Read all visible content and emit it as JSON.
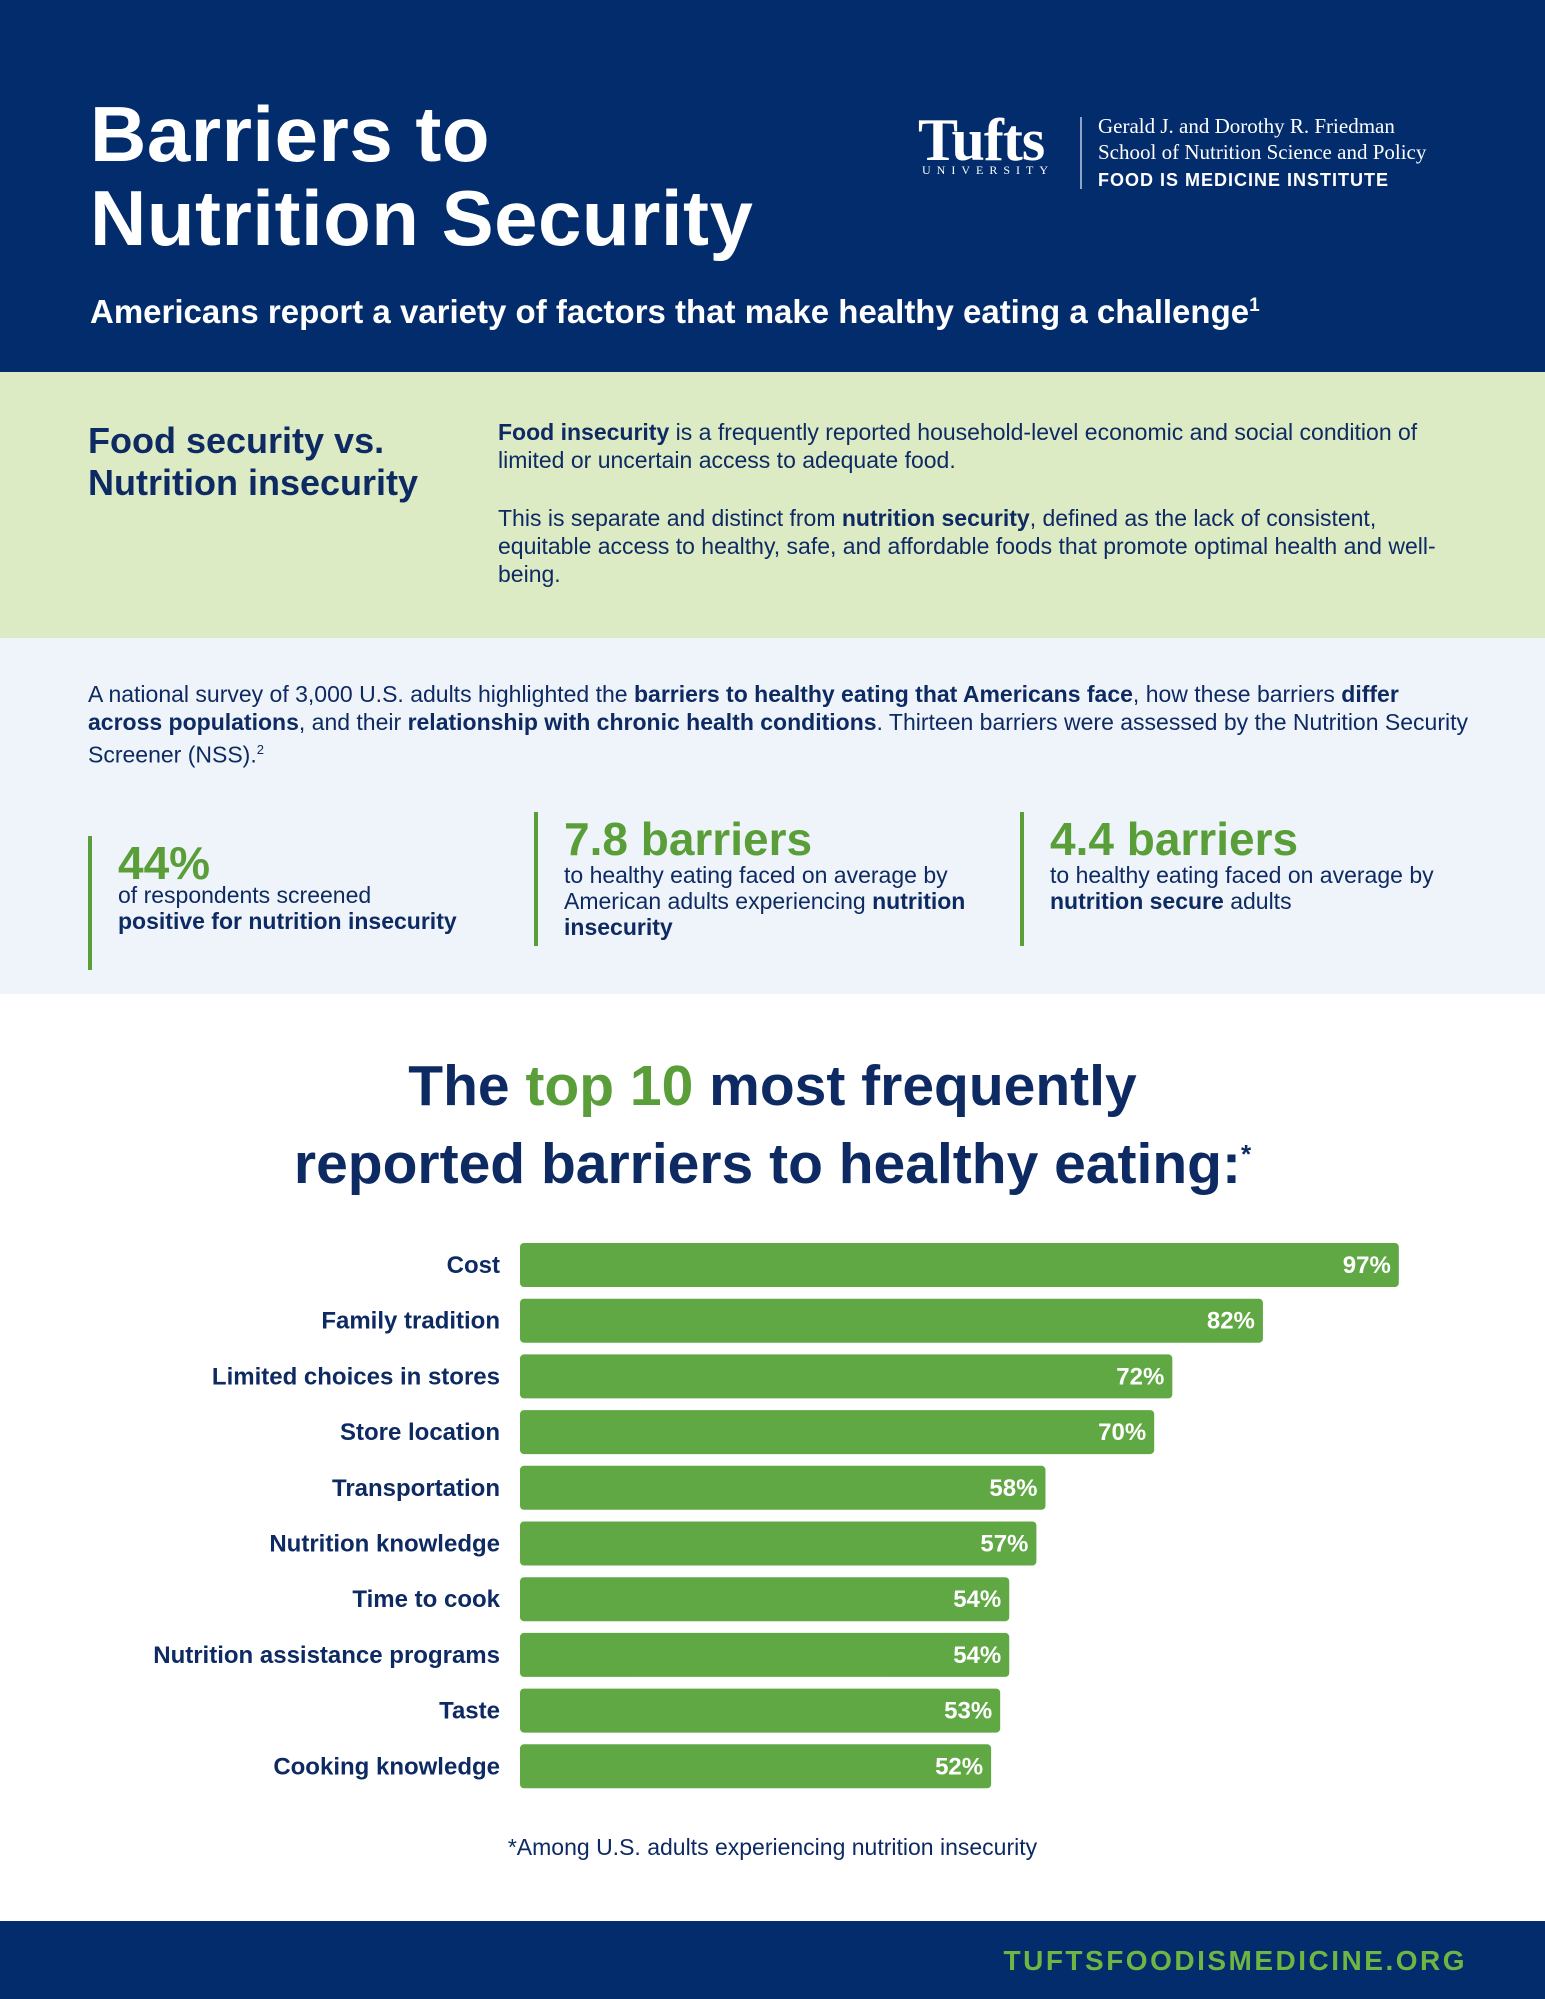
{
  "header": {
    "title_line1": "Barriers to",
    "title_line2": "Nutrition Security",
    "subtitle": "Americans report a variety of factors that make healthy eating a challenge",
    "subtitle_ref": "1",
    "logo": {
      "wordmark": "Tufts",
      "university": "UNIVERSITY",
      "line1": "Gerald J. and Dorothy R. Friedman",
      "line2": "School of Nutrition Science and Policy",
      "line3": "FOOD IS MEDICINE INSTITUTE"
    }
  },
  "definitions": {
    "heading_line1": "Food security vs.",
    "heading_line2": "Nutrition insecurity",
    "p1_bold": "Food insecurity",
    "p1_rest": " is a frequently reported household-level economic and social condition of limited or uncertain access to adequate food.",
    "p2_pre": "This is separate and distinct from ",
    "p2_bold": "nutrition security",
    "p2_rest": ", defined as the lack of consistent, equitable access to healthy, safe, and affordable foods that promote optimal health and well-being."
  },
  "survey": {
    "intro_a": "A national survey of 3,000 U.S. adults highlighted the ",
    "intro_b": "barriers to healthy eating that Americans face",
    "intro_c": ", how these barriers ",
    "intro_d": "differ across populations",
    "intro_e": ", and their ",
    "intro_f": "relationship with chronic health conditions",
    "intro_g": ". Thirteen barriers were assessed by the Nutrition Security Screener (NSS).",
    "intro_ref": "2",
    "stats": [
      {
        "value": "44%",
        "desc_plain": "of respondents screened ",
        "desc_bold": "positive for nutrition insecurity",
        "desc_after": ""
      },
      {
        "value": "7.8 barriers",
        "desc_plain": "to healthy eating faced on average by American adults experiencing ",
        "desc_bold": "nutrition insecurity",
        "desc_after": ""
      },
      {
        "value": "4.4 barriers",
        "desc_plain": "to healthy eating faced on average by ",
        "desc_bold": "nutrition secure",
        "desc_after": " adults"
      }
    ]
  },
  "chart_section": {
    "title_a": "The ",
    "title_b": "top 10",
    "title_c": " most frequently",
    "title_d": "reported barriers to healthy eating:",
    "title_mark": "*",
    "footnote": "*Among U.S. adults experiencing nutrition insecurity"
  },
  "chart_data": {
    "type": "bar",
    "orientation": "horizontal",
    "categories": [
      "Cost",
      "Family tradition",
      "Limited choices in stores",
      "Store location",
      "Transportation",
      "Nutrition knowledge",
      "Time to cook",
      "Nutrition assistance programs",
      "Taste",
      "Cooking knowledge"
    ],
    "values": [
      97,
      82,
      72,
      70,
      58,
      57,
      54,
      54,
      53,
      52
    ],
    "value_labels": [
      "97%",
      "82%",
      "72%",
      "70%",
      "58%",
      "57%",
      "54%",
      "54%",
      "53%",
      "52%"
    ],
    "unit": "%",
    "xlim": [
      0,
      100
    ],
    "bar_color": "#5fa843",
    "grid": false,
    "legend": "none"
  },
  "footer": {
    "url": "TUFTSFOODISMEDICINE.ORG"
  },
  "colors": {
    "navy": "#032c6c",
    "text_navy": "#0e2a63",
    "green": "#5a9e3a",
    "light_green_bg": "#dcebc4",
    "light_blue_bg": "#eef4f9"
  }
}
